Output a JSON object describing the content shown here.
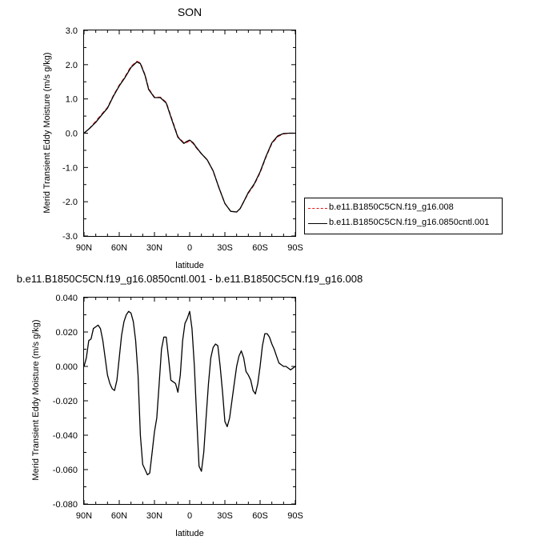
{
  "chart_data": [
    {
      "type": "line",
      "title": "SON",
      "xlabel": "latitude",
      "ylabel": "Merid Transient Eddy Moisture (m/s g/kg)",
      "xlim": [
        90,
        -90
      ],
      "ylim": [
        -3.0,
        3.0
      ],
      "xticks": [
        90,
        60,
        30,
        0,
        -30,
        -60,
        -90
      ],
      "xtick_labels": [
        "90N",
        "60N",
        "30N",
        "0",
        "30S",
        "60S",
        "90S"
      ],
      "yticks": [
        3.0,
        2.0,
        1.0,
        0.0,
        -1.0,
        -2.0,
        -3.0
      ],
      "ytick_labels": [
        "3.0",
        "2.0",
        "1.0",
        "0.0",
        "-1.0",
        "-2.0",
        "-3.0"
      ],
      "grid": false,
      "legend_position": "right",
      "series": [
        {
          "name": "b.e11.B1850C5CN.f19_g16.008",
          "color": "#e31a1c",
          "dash": "dashed",
          "x": [
            90,
            85,
            80,
            75,
            70,
            65,
            60,
            55,
            50,
            45,
            42,
            38,
            35,
            30,
            25,
            20,
            15,
            10,
            5,
            3,
            0,
            -3,
            -5,
            -10,
            -15,
            -20,
            -25,
            -30,
            -35,
            -40,
            -43,
            -46,
            -50,
            -55,
            -60,
            -65,
            -70,
            -75,
            -80,
            -85,
            -90
          ],
          "y": [
            0.0,
            0.15,
            0.35,
            0.55,
            0.75,
            1.1,
            1.4,
            1.65,
            1.95,
            2.1,
            2.05,
            1.7,
            1.3,
            1.05,
            1.05,
            0.9,
            0.4,
            -0.1,
            -0.28,
            -0.28,
            -0.22,
            -0.3,
            -0.4,
            -0.6,
            -0.78,
            -1.1,
            -1.6,
            -2.05,
            -2.28,
            -2.3,
            -2.2,
            -2.0,
            -1.75,
            -1.5,
            -1.15,
            -0.7,
            -0.3,
            -0.1,
            -0.02,
            0.0,
            0.0
          ]
        },
        {
          "name": "b.e11.B1850C5CN.f19_g16.0850cntl.001",
          "color": "#000000",
          "dash": "solid",
          "x": [
            90,
            85,
            80,
            75,
            70,
            65,
            60,
            55,
            50,
            45,
            42,
            38,
            35,
            30,
            25,
            20,
            15,
            10,
            5,
            3,
            0,
            -3,
            -5,
            -10,
            -15,
            -20,
            -25,
            -30,
            -35,
            -40,
            -43,
            -46,
            -50,
            -55,
            -60,
            -65,
            -70,
            -75,
            -80,
            -85,
            -90
          ],
          "y": [
            0.0,
            0.15,
            0.32,
            0.53,
            0.73,
            1.08,
            1.38,
            1.63,
            1.92,
            2.08,
            2.03,
            1.68,
            1.28,
            1.04,
            1.04,
            0.88,
            0.37,
            -0.12,
            -0.3,
            -0.25,
            -0.2,
            -0.28,
            -0.38,
            -0.6,
            -0.78,
            -1.1,
            -1.6,
            -2.05,
            -2.28,
            -2.3,
            -2.2,
            -2.0,
            -1.73,
            -1.48,
            -1.13,
            -0.68,
            -0.28,
            -0.08,
            -0.01,
            0.0,
            0.0
          ]
        }
      ]
    },
    {
      "type": "line",
      "title": "b.e11.B1850C5CN.f19_g16.0850cntl.001 - b.e11.B1850C5CN.f19_g16.008",
      "xlabel": "latitude",
      "ylabel": "Merid Transient Eddy Moisture (m/s g/kg)",
      "xlim": [
        90,
        -90
      ],
      "ylim": [
        -0.08,
        0.04
      ],
      "xticks": [
        90,
        60,
        30,
        0,
        -30,
        -60,
        -90
      ],
      "xtick_labels": [
        "90N",
        "60N",
        "30N",
        "0",
        "30S",
        "60S",
        "90S"
      ],
      "yticks": [
        0.04,
        0.02,
        0.0,
        -0.02,
        -0.04,
        -0.06,
        -0.08
      ],
      "ytick_labels": [
        "0.040",
        "0.020",
        "0.000",
        "-0.020",
        "-0.040",
        "-0.060",
        "-0.080"
      ],
      "grid": false,
      "series": [
        {
          "color": "#000000",
          "dash": "solid",
          "x": [
            90,
            88,
            86,
            84,
            82,
            80,
            78,
            76,
            74,
            72,
            70,
            68,
            66,
            64,
            62,
            60,
            58,
            56,
            54,
            52,
            50,
            48,
            46,
            44,
            42,
            40,
            38,
            36,
            34,
            32,
            30,
            28,
            26,
            24,
            22,
            20,
            18,
            16,
            14,
            12,
            10,
            8,
            6,
            4,
            2,
            0,
            -2,
            -4,
            -6,
            -8,
            -10,
            -12,
            -14,
            -16,
            -18,
            -20,
            -22,
            -24,
            -26,
            -28,
            -30,
            -32,
            -34,
            -36,
            -38,
            -40,
            -42,
            -44,
            -46,
            -48,
            -50,
            -52,
            -54,
            -56,
            -58,
            -60,
            -62,
            -64,
            -66,
            -68,
            -70,
            -72,
            -74,
            -76,
            -78,
            -80,
            -82,
            -84,
            -86,
            -88,
            -90
          ],
          "y": [
            0.0,
            0.005,
            0.015,
            0.016,
            0.022,
            0.023,
            0.024,
            0.022,
            0.015,
            0.005,
            -0.005,
            -0.01,
            -0.013,
            -0.014,
            -0.008,
            0.005,
            0.018,
            0.026,
            0.03,
            0.032,
            0.031,
            0.026,
            0.015,
            -0.005,
            -0.04,
            -0.057,
            -0.06,
            -0.063,
            -0.062,
            -0.05,
            -0.038,
            -0.03,
            -0.01,
            0.01,
            0.017,
            0.017,
            0.005,
            -0.008,
            -0.009,
            -0.01,
            -0.015,
            -0.005,
            0.015,
            0.025,
            0.028,
            0.032,
            0.022,
            0.0,
            -0.03,
            -0.058,
            -0.061,
            -0.05,
            -0.03,
            -0.01,
            0.005,
            0.011,
            0.013,
            0.012,
            0.0,
            -0.015,
            -0.032,
            -0.035,
            -0.03,
            -0.02,
            -0.01,
            0.0,
            0.006,
            0.009,
            0.005,
            -0.003,
            -0.005,
            -0.008,
            -0.014,
            -0.016,
            -0.01,
            0.0,
            0.012,
            0.019,
            0.019,
            0.017,
            0.013,
            0.01,
            0.006,
            0.002,
            0.001,
            0.0,
            0.0,
            -0.001,
            -0.002,
            -0.001,
            0.0
          ]
        }
      ]
    }
  ]
}
